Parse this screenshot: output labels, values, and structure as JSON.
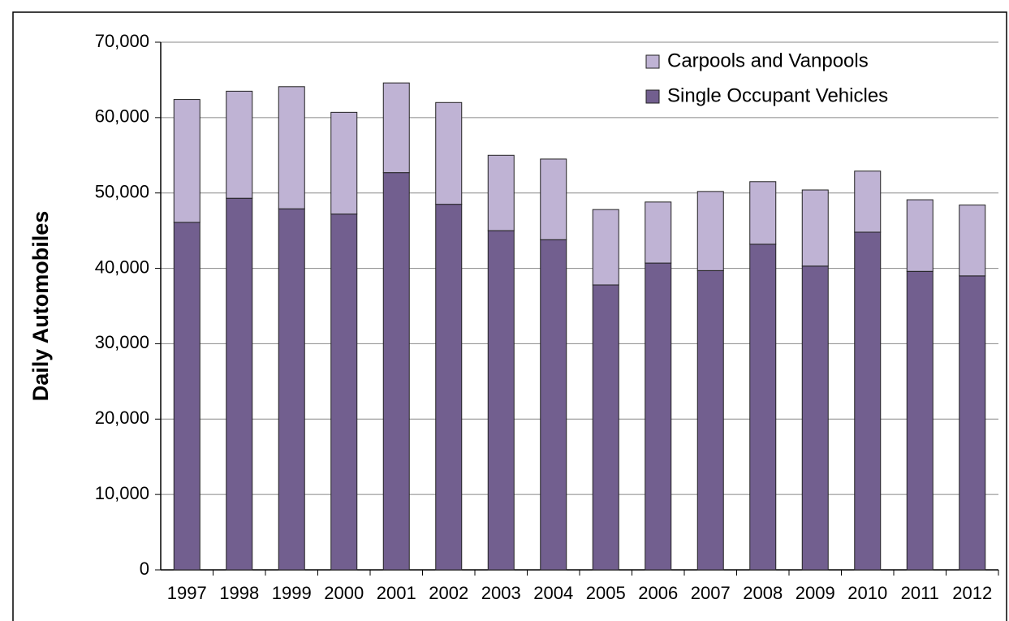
{
  "chart_data": {
    "type": "stacked_bar",
    "y_label": "Daily Automobiles",
    "categories": [
      "1997",
      "1998",
      "1999",
      "2000",
      "2001",
      "2002",
      "2003",
      "2004",
      "2005",
      "2006",
      "2007",
      "2008",
      "2009",
      "2010",
      "2011",
      "2012"
    ],
    "series": [
      {
        "name": "Single Occupant Vehicles",
        "color": "#725f8f",
        "values": [
          46100,
          49300,
          47900,
          47200,
          52700,
          48500,
          45000,
          43800,
          37800,
          40700,
          39700,
          43200,
          40300,
          44800,
          39600,
          39000
        ]
      },
      {
        "name": "Carpools and Vanpools",
        "color": "#bfb3d4",
        "values": [
          16300,
          14200,
          16200,
          13500,
          11900,
          13500,
          10000,
          10700,
          10000,
          8100,
          10500,
          8300,
          10100,
          8100,
          9500,
          9400
        ]
      }
    ],
    "ylim": [
      0,
      70000
    ],
    "yticks": [
      0,
      {
        "value": 10000,
        "label": "10,000"
      },
      {
        "value": 20000,
        "label": "20,000"
      },
      {
        "value": 30000,
        "label": "30,000"
      },
      {
        "value": 40000,
        "label": "40,000"
      },
      {
        "value": 50000,
        "label": "50,000"
      },
      {
        "value": 60000,
        "label": "60,000"
      },
      {
        "value": 70000,
        "label": "70,000"
      }
    ],
    "grid": true,
    "legend": "upper-right"
  }
}
